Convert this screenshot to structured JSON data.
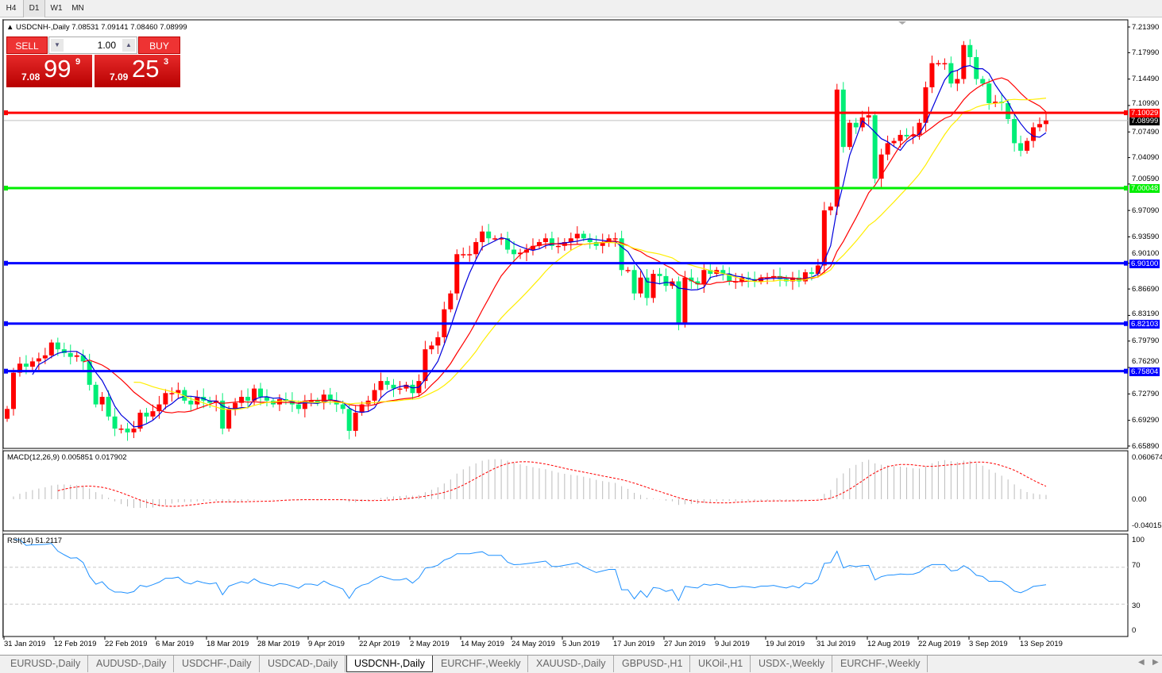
{
  "timeframes": [
    "H4",
    "D1",
    "W1",
    "MN"
  ],
  "active_timeframe": "D1",
  "chart_header": {
    "symbol": "USDCNH-,Daily",
    "ohlc": "7.08531 7.09141 7.08460 7.08999"
  },
  "trade_panel": {
    "sell_label": "SELL",
    "buy_label": "BUY",
    "lot": "1.00",
    "bid": {
      "prefix": "7.08",
      "big": "99",
      "sup": "9"
    },
    "ask": {
      "prefix": "7.09",
      "big": "25",
      "sup": "3"
    }
  },
  "colors": {
    "up": "#ff0000",
    "down": "#00ee77",
    "ma_fast": "#0000dd",
    "ma_mid": "#ff0000",
    "ma_slow": "#ffee00",
    "macd_signal": "#ff0000",
    "rsi": "#1e90ff"
  },
  "price_axis": [
    "7.21390",
    "7.17990",
    "7.14490",
    "7.10990",
    "7.07490",
    "7.04090",
    "7.00590",
    "6.97090",
    "6.93590",
    "6.90100",
    "6.86690",
    "6.83190",
    "6.79790",
    "6.76290",
    "6.72790",
    "6.69290",
    "6.65890"
  ],
  "price_range": [
    6.6589,
    7.2139
  ],
  "hlines": [
    {
      "label": "7.10029",
      "value": 7.10029,
      "color": "#ff0000"
    },
    {
      "label": "7.00048",
      "value": 7.00048,
      "color": "#00ee00"
    },
    {
      "label": "6.90100",
      "value": 6.901,
      "color": "#0000ff"
    },
    {
      "label": "6.82103",
      "value": 6.82103,
      "color": "#0000ff"
    },
    {
      "label": "6.75804",
      "value": 6.75804,
      "color": "#0000ff"
    }
  ],
  "bid_line": {
    "label": "7.08999",
    "value": 7.08999
  },
  "chart_data": {
    "type": "candlestick",
    "first_open": 6.695,
    "close": [
      6.708,
      6.756,
      6.768,
      6.764,
      6.771,
      6.775,
      6.779,
      6.796,
      6.787,
      6.782,
      6.777,
      6.779,
      6.771,
      6.74,
      6.714,
      6.724,
      6.698,
      6.682,
      6.682,
      6.677,
      6.682,
      6.703,
      6.698,
      6.705,
      6.714,
      6.729,
      6.729,
      6.733,
      6.719,
      6.714,
      6.724,
      6.719,
      6.716,
      6.719,
      6.682,
      6.708,
      6.716,
      6.724,
      6.719,
      6.735,
      6.724,
      6.719,
      6.714,
      6.721,
      6.719,
      6.714,
      6.708,
      6.719,
      6.719,
      6.716,
      6.727,
      6.719,
      6.714,
      6.708,
      6.679,
      6.703,
      6.714,
      6.719,
      6.733,
      6.745,
      6.74,
      6.735,
      6.735,
      6.74,
      6.729,
      6.745,
      6.787,
      6.792,
      6.803,
      6.84,
      6.861,
      6.913,
      6.913,
      6.913,
      6.929,
      6.943,
      6.934,
      6.934,
      6.934,
      6.919,
      6.913,
      6.915,
      6.919,
      6.924,
      6.929,
      6.934,
      6.924,
      6.924,
      6.929,
      6.934,
      6.94,
      6.934,
      6.929,
      6.924,
      6.929,
      6.934,
      6.934,
      6.892,
      6.892,
      6.861,
      6.882,
      6.855,
      6.887,
      6.884,
      6.871,
      6.877,
      6.821,
      6.882,
      6.877,
      6.873,
      6.892,
      6.887,
      6.892,
      6.887,
      6.877,
      6.877,
      6.882,
      6.88,
      6.877,
      6.882,
      6.882,
      6.884,
      6.88,
      6.877,
      6.882,
      6.877,
      6.889,
      6.887,
      6.898,
      6.971,
      6.976,
      7.131,
      7.055,
      7.087,
      7.081,
      7.094,
      7.097,
      7.013,
      7.045,
      7.06,
      7.063,
      7.071,
      7.069,
      7.071,
      7.087,
      7.134,
      7.166,
      7.166,
      7.166,
      7.139,
      7.145,
      7.19,
      7.174,
      7.145,
      7.139,
      7.113,
      7.115,
      7.113,
      7.092,
      7.06,
      7.05,
      7.063,
      7.081,
      7.08531,
      7.08999
    ],
    "x_labels": [
      "31 Jan 2019",
      "12 Feb 2019",
      "22 Feb 2019",
      "6 Mar 2019",
      "18 Mar 2019",
      "28 Mar 2019",
      "9 Apr 2019",
      "22 Apr 2019",
      "2 May 2019",
      "14 May 2019",
      "24 May 2019",
      "5 Jun 2019",
      "17 Jun 2019",
      "27 Jun 2019",
      "9 Jul 2019",
      "19 Jul 2019",
      "31 Jul 2019",
      "12 Aug 2019",
      "22 Aug 2019",
      "3 Sep 2019",
      "13 Sep 2019"
    ]
  },
  "macd": {
    "label": "MACD(12,26,9) 0.005851 0.017902",
    "axis": [
      "0.060674",
      "0.00",
      "-0.040152"
    ]
  },
  "rsi": {
    "label": "RSI(14) 51.2117",
    "axis": [
      "100",
      "70",
      "30",
      "0"
    ]
  },
  "tabs": [
    "EURUSD-,Daily",
    "AUDUSD-,Daily",
    "USDCHF-,Daily",
    "USDCAD-,Daily",
    "USDCNH-,Daily",
    "EURCHF-,Weekly",
    "XAUUSD-,Daily",
    "GBPUSD-,H1",
    "UKOil-,H1",
    "USDX-,Weekly",
    "EURCHF-,Weekly"
  ],
  "active_tab": "USDCNH-,Daily"
}
